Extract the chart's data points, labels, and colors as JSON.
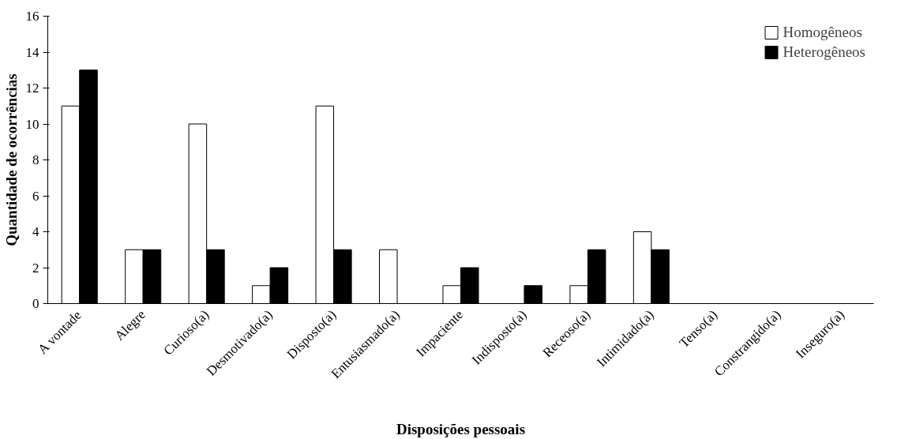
{
  "chart_data": {
    "type": "bar",
    "xlabel": "Disposições pessoais",
    "ylabel": "Quantidade de ocorrências",
    "categories": [
      "A vontade",
      "Alegre",
      "Curioso(a)",
      "Desmotivado(a)",
      "Disposto(a)",
      "Entusiasmado(a)",
      "Impaciente",
      "Indisposto(a)",
      "Receoso(a)",
      "Intimidado(a)",
      "Tenso(a)",
      "Constrangido(a)",
      "Inseguro(a)"
    ],
    "series": [
      {
        "name": "Homogêneos",
        "color": "#ffffff",
        "values": [
          11,
          3,
          10,
          1,
          11,
          3,
          1,
          0,
          1,
          4,
          0,
          0,
          0
        ]
      },
      {
        "name": "Heterogêneos",
        "color": "#000000",
        "values": [
          13,
          3,
          3,
          2,
          3,
          0,
          2,
          1,
          3,
          3,
          0,
          0,
          0
        ]
      }
    ],
    "ylim": [
      0,
      16
    ],
    "yticks": [
      0,
      2,
      4,
      6,
      8,
      10,
      12,
      14,
      16
    ],
    "grid": false,
    "legend": "top right"
  }
}
